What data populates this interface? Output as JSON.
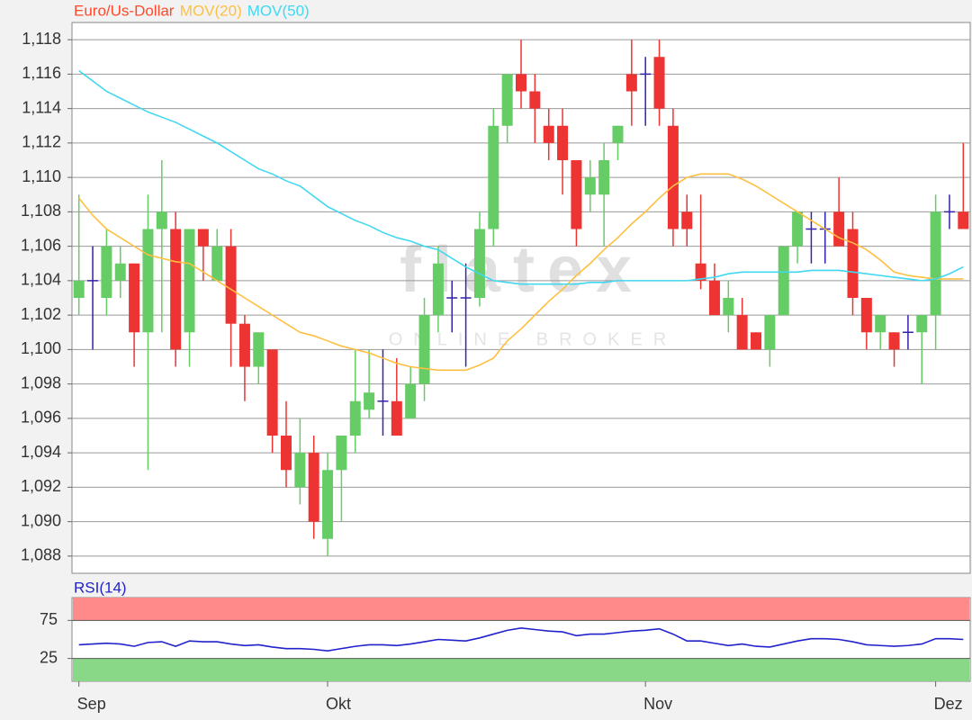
{
  "chart_data": [
    {
      "type": "candlestick",
      "watermark": "flatex",
      "watermark_subtitle": "ONLINE BROKER",
      "ylim": [
        1.087,
        1.119
      ],
      "yticks": [
        {
          "value": 1.088,
          "label": "1,088"
        },
        {
          "value": 1.09,
          "label": "1,090"
        },
        {
          "value": 1.092,
          "label": "1,092"
        },
        {
          "value": 1.094,
          "label": "1,094"
        },
        {
          "value": 1.096,
          "label": "1,096"
        },
        {
          "value": 1.098,
          "label": "1,098"
        },
        {
          "value": 1.1,
          "label": "1,100"
        },
        {
          "value": 1.102,
          "label": "1,102"
        },
        {
          "value": 1.104,
          "label": "1,104"
        },
        {
          "value": 1.106,
          "label": "1,106"
        },
        {
          "value": 1.108,
          "label": "1,108"
        },
        {
          "value": 1.11,
          "label": "1,110"
        },
        {
          "value": 1.112,
          "label": "1,112"
        },
        {
          "value": 1.114,
          "label": "1,114"
        },
        {
          "value": 1.116,
          "label": "1,116"
        },
        {
          "value": 1.118,
          "label": "1,118"
        }
      ],
      "grid": true,
      "up_color": "#66cc66",
      "down_color": "#ee3333",
      "doji_color": "#3322aa",
      "series": [
        {
          "name": "Euro/Us-Dollar",
          "color": "#ff4a2a",
          "type": "candlestick",
          "open": [
            1.103,
            1.104,
            1.103,
            1.104,
            1.105,
            1.101,
            1.107,
            1.107,
            1.101,
            1.107,
            1.104,
            1.106,
            1.1015,
            1.099,
            1.1,
            1.095,
            1.092,
            1.094,
            1.089,
            1.093,
            1.095,
            1.0965,
            1.097,
            1.097,
            1.096,
            1.098,
            1.102,
            1.103,
            1.103,
            1.103,
            1.107,
            1.113,
            1.116,
            1.115,
            1.113,
            1.113,
            1.111,
            1.109,
            1.109,
            1.112,
            1.116,
            1.116,
            1.117,
            1.113,
            1.108,
            1.105,
            1.104,
            1.102,
            1.102,
            1.101,
            1.1,
            1.102,
            1.106,
            1.107,
            1.107,
            1.108,
            1.107,
            1.103,
            1.101,
            1.101,
            1.101,
            1.101,
            1.102,
            1.108,
            1.108
          ],
          "high": [
            1.109,
            1.106,
            1.107,
            1.106,
            1.105,
            1.109,
            1.111,
            1.108,
            1.107,
            1.107,
            1.107,
            1.107,
            1.102,
            1.101,
            1.1,
            1.097,
            1.096,
            1.095,
            1.094,
            1.095,
            1.1,
            1.1,
            1.1,
            1.0995,
            1.099,
            1.103,
            1.106,
            1.104,
            1.105,
            1.108,
            1.114,
            1.116,
            1.118,
            1.116,
            1.114,
            1.114,
            1.111,
            1.111,
            1.112,
            1.113,
            1.118,
            1.117,
            1.118,
            1.114,
            1.109,
            1.109,
            1.105,
            1.104,
            1.103,
            1.101,
            1.102,
            1.106,
            1.108,
            1.108,
            1.108,
            1.11,
            1.108,
            1.103,
            1.102,
            1.101,
            1.102,
            1.102,
            1.109,
            1.109,
            1.112
          ],
          "low": [
            1.102,
            1.1,
            1.102,
            1.103,
            1.099,
            1.093,
            1.101,
            1.099,
            1.099,
            1.104,
            1.104,
            1.099,
            1.097,
            1.098,
            1.094,
            1.092,
            1.091,
            1.089,
            1.088,
            1.09,
            1.094,
            1.096,
            1.095,
            1.095,
            1.096,
            1.097,
            1.101,
            1.101,
            1.099,
            1.1025,
            1.106,
            1.112,
            1.114,
            1.112,
            1.111,
            1.109,
            1.106,
            1.108,
            1.106,
            1.111,
            1.113,
            1.113,
            1.113,
            1.106,
            1.106,
            1.1035,
            1.102,
            1.101,
            1.1,
            1.1,
            1.099,
            1.102,
            1.105,
            1.105,
            1.105,
            1.106,
            1.102,
            1.1,
            1.1,
            1.099,
            1.1,
            1.098,
            1.1,
            1.107,
            1.107
          ],
          "close": [
            1.104,
            1.104,
            1.106,
            1.105,
            1.101,
            1.107,
            1.108,
            1.1,
            1.107,
            1.106,
            1.106,
            1.1015,
            1.099,
            1.101,
            1.095,
            1.093,
            1.094,
            1.09,
            1.093,
            1.095,
            1.097,
            1.0975,
            1.097,
            1.095,
            1.098,
            1.102,
            1.105,
            1.103,
            1.103,
            1.107,
            1.113,
            1.116,
            1.115,
            1.114,
            1.112,
            1.111,
            1.107,
            1.11,
            1.111,
            1.113,
            1.115,
            1.116,
            1.114,
            1.107,
            1.107,
            1.104,
            1.102,
            1.103,
            1.1,
            1.1,
            1.102,
            1.106,
            1.108,
            1.107,
            1.107,
            1.106,
            1.103,
            1.101,
            1.102,
            1.1,
            1.101,
            1.102,
            1.108,
            1.108,
            1.107
          ]
        },
        {
          "name": "MOV(20)",
          "color": "#ffbf40",
          "values": [
            1.1088,
            1.1078,
            1.107,
            1.1065,
            1.106,
            1.1055,
            1.1053,
            1.1051,
            1.105,
            1.1045,
            1.104,
            1.1035,
            1.103,
            1.1025,
            1.102,
            1.1015,
            1.101,
            1.1008,
            1.1005,
            1.1002,
            1.1,
            1.0998,
            1.0995,
            1.0992,
            1.099,
            1.0989,
            1.0988,
            1.0988,
            1.0988,
            1.0991,
            1.0995,
            1.1005,
            1.1012,
            1.102,
            1.1028,
            1.1035,
            1.1043,
            1.105,
            1.1058,
            1.1065,
            1.1073,
            1.108,
            1.1088,
            1.1095,
            1.11,
            1.1102,
            1.1102,
            1.1102,
            1.1099,
            1.1095,
            1.109,
            1.1085,
            1.108,
            1.1075,
            1.107,
            1.1065,
            1.1062,
            1.1058,
            1.1052,
            1.1045,
            1.1043,
            1.1042,
            1.1041,
            1.1041,
            1.1041
          ]
        },
        {
          "name": "MOV(50)",
          "color": "#40d8f0",
          "values": [
            1.1162,
            1.1156,
            1.115,
            1.1146,
            1.1142,
            1.1138,
            1.1135,
            1.1132,
            1.1128,
            1.1124,
            1.112,
            1.1115,
            1.111,
            1.1105,
            1.1102,
            1.1098,
            1.1095,
            1.1089,
            1.1083,
            1.1079,
            1.1075,
            1.1072,
            1.1068,
            1.1065,
            1.1063,
            1.106,
            1.1058,
            1.1053,
            1.1048,
            1.1044,
            1.104,
            1.1039,
            1.1038,
            1.1038,
            1.1038,
            1.1038,
            1.1038,
            1.1039,
            1.1039,
            1.104,
            1.104,
            1.104,
            1.104,
            1.104,
            1.104,
            1.1041,
            1.1042,
            1.1044,
            1.1045,
            1.1045,
            1.1045,
            1.1045,
            1.1045,
            1.1046,
            1.1046,
            1.1046,
            1.1045,
            1.1044,
            1.1043,
            1.1042,
            1.1041,
            1.104,
            1.1041,
            1.1044,
            1.1048
          ]
        }
      ]
    },
    {
      "type": "line",
      "title": "RSI(14)",
      "categories": [
        "Sep",
        null,
        null,
        null,
        null,
        null,
        null,
        null,
        null,
        null,
        null,
        null,
        null,
        null,
        null,
        null,
        null,
        null,
        "Okt",
        null,
        null,
        null,
        null,
        null,
        null,
        null,
        null,
        null,
        null,
        null,
        null,
        null,
        null,
        null,
        null,
        null,
        null,
        null,
        null,
        null,
        null,
        "Nov",
        null,
        null,
        null,
        null,
        null,
        null,
        null,
        null,
        null,
        null,
        null,
        null,
        null,
        null,
        null,
        null,
        null,
        null,
        null,
        null,
        "Dez",
        null,
        null
      ],
      "ylim": [
        -5,
        105
      ],
      "yticks": [
        25,
        75
      ],
      "zones": [
        {
          "range": [
            75,
            105
          ],
          "color": "#ff8a8a"
        },
        {
          "range": [
            -5,
            25
          ],
          "color": "#88d888"
        }
      ],
      "series": [
        {
          "name": "RSI(14)",
          "color": "#2222cc",
          "values": [
            43,
            44,
            45,
            44,
            41,
            46,
            47,
            41,
            48,
            47,
            47,
            44,
            42,
            43,
            40,
            38,
            38,
            37,
            35,
            38,
            41,
            43,
            43,
            42,
            44,
            47,
            50,
            49,
            48,
            52,
            57,
            62,
            65,
            63,
            61,
            60,
            55,
            57,
            57,
            59,
            61,
            62,
            64,
            57,
            48,
            48,
            45,
            42,
            44,
            41,
            40,
            44,
            48,
            51,
            51,
            50,
            47,
            43,
            42,
            41,
            42,
            44,
            51,
            51,
            50
          ]
        }
      ]
    }
  ]
}
